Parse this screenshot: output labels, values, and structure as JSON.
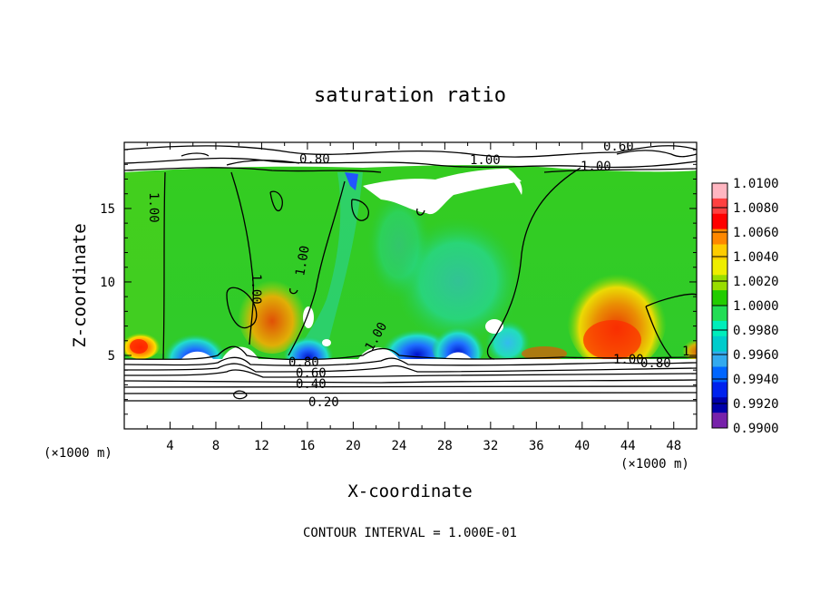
{
  "chart_data": {
    "type": "heatmap",
    "title": "saturation ratio",
    "xlabel": "X-coordinate",
    "ylabel": "Z-coordinate",
    "x_unit_left": "(×1000 m)",
    "x_unit_right": "(×1000 m)",
    "xlim": [
      0,
      50
    ],
    "ylim": [
      0,
      19.5
    ],
    "x_ticks": [
      "4",
      "8",
      "12",
      "16",
      "20",
      "24",
      "28",
      "32",
      "36",
      "40",
      "44",
      "48"
    ],
    "y_ticks": [
      "5",
      "10",
      "15"
    ],
    "colorbar_ticks": [
      "1.0100",
      "1.0080",
      "1.0060",
      "1.0040",
      "1.0020",
      "1.0000",
      "0.9980",
      "0.9960",
      "0.9940",
      "0.9920",
      "0.9900"
    ],
    "colorbar_colors": [
      "#ffb6c1",
      "#ff4040",
      "#ff0000",
      "#ff8800",
      "#ffcc00",
      "#eeee00",
      "#99dd00",
      "#22cc00",
      "#22dd55",
      "#00eebb",
      "#00cccc",
      "#33aaee",
      "#0066ff",
      "#0022ee",
      "#0000aa",
      "#7722aa"
    ],
    "contour_interval": "CONTOUR INTERVAL = 1.000E-01",
    "contour_labels": [
      "0.80",
      "1.00",
      "0.60",
      "1.00",
      "1.00",
      "1.00",
      "1.00",
      "0.80",
      "0.60",
      "0.40",
      "0.20",
      "1.00",
      "0.80",
      "1",
      "1.00"
    ]
  }
}
